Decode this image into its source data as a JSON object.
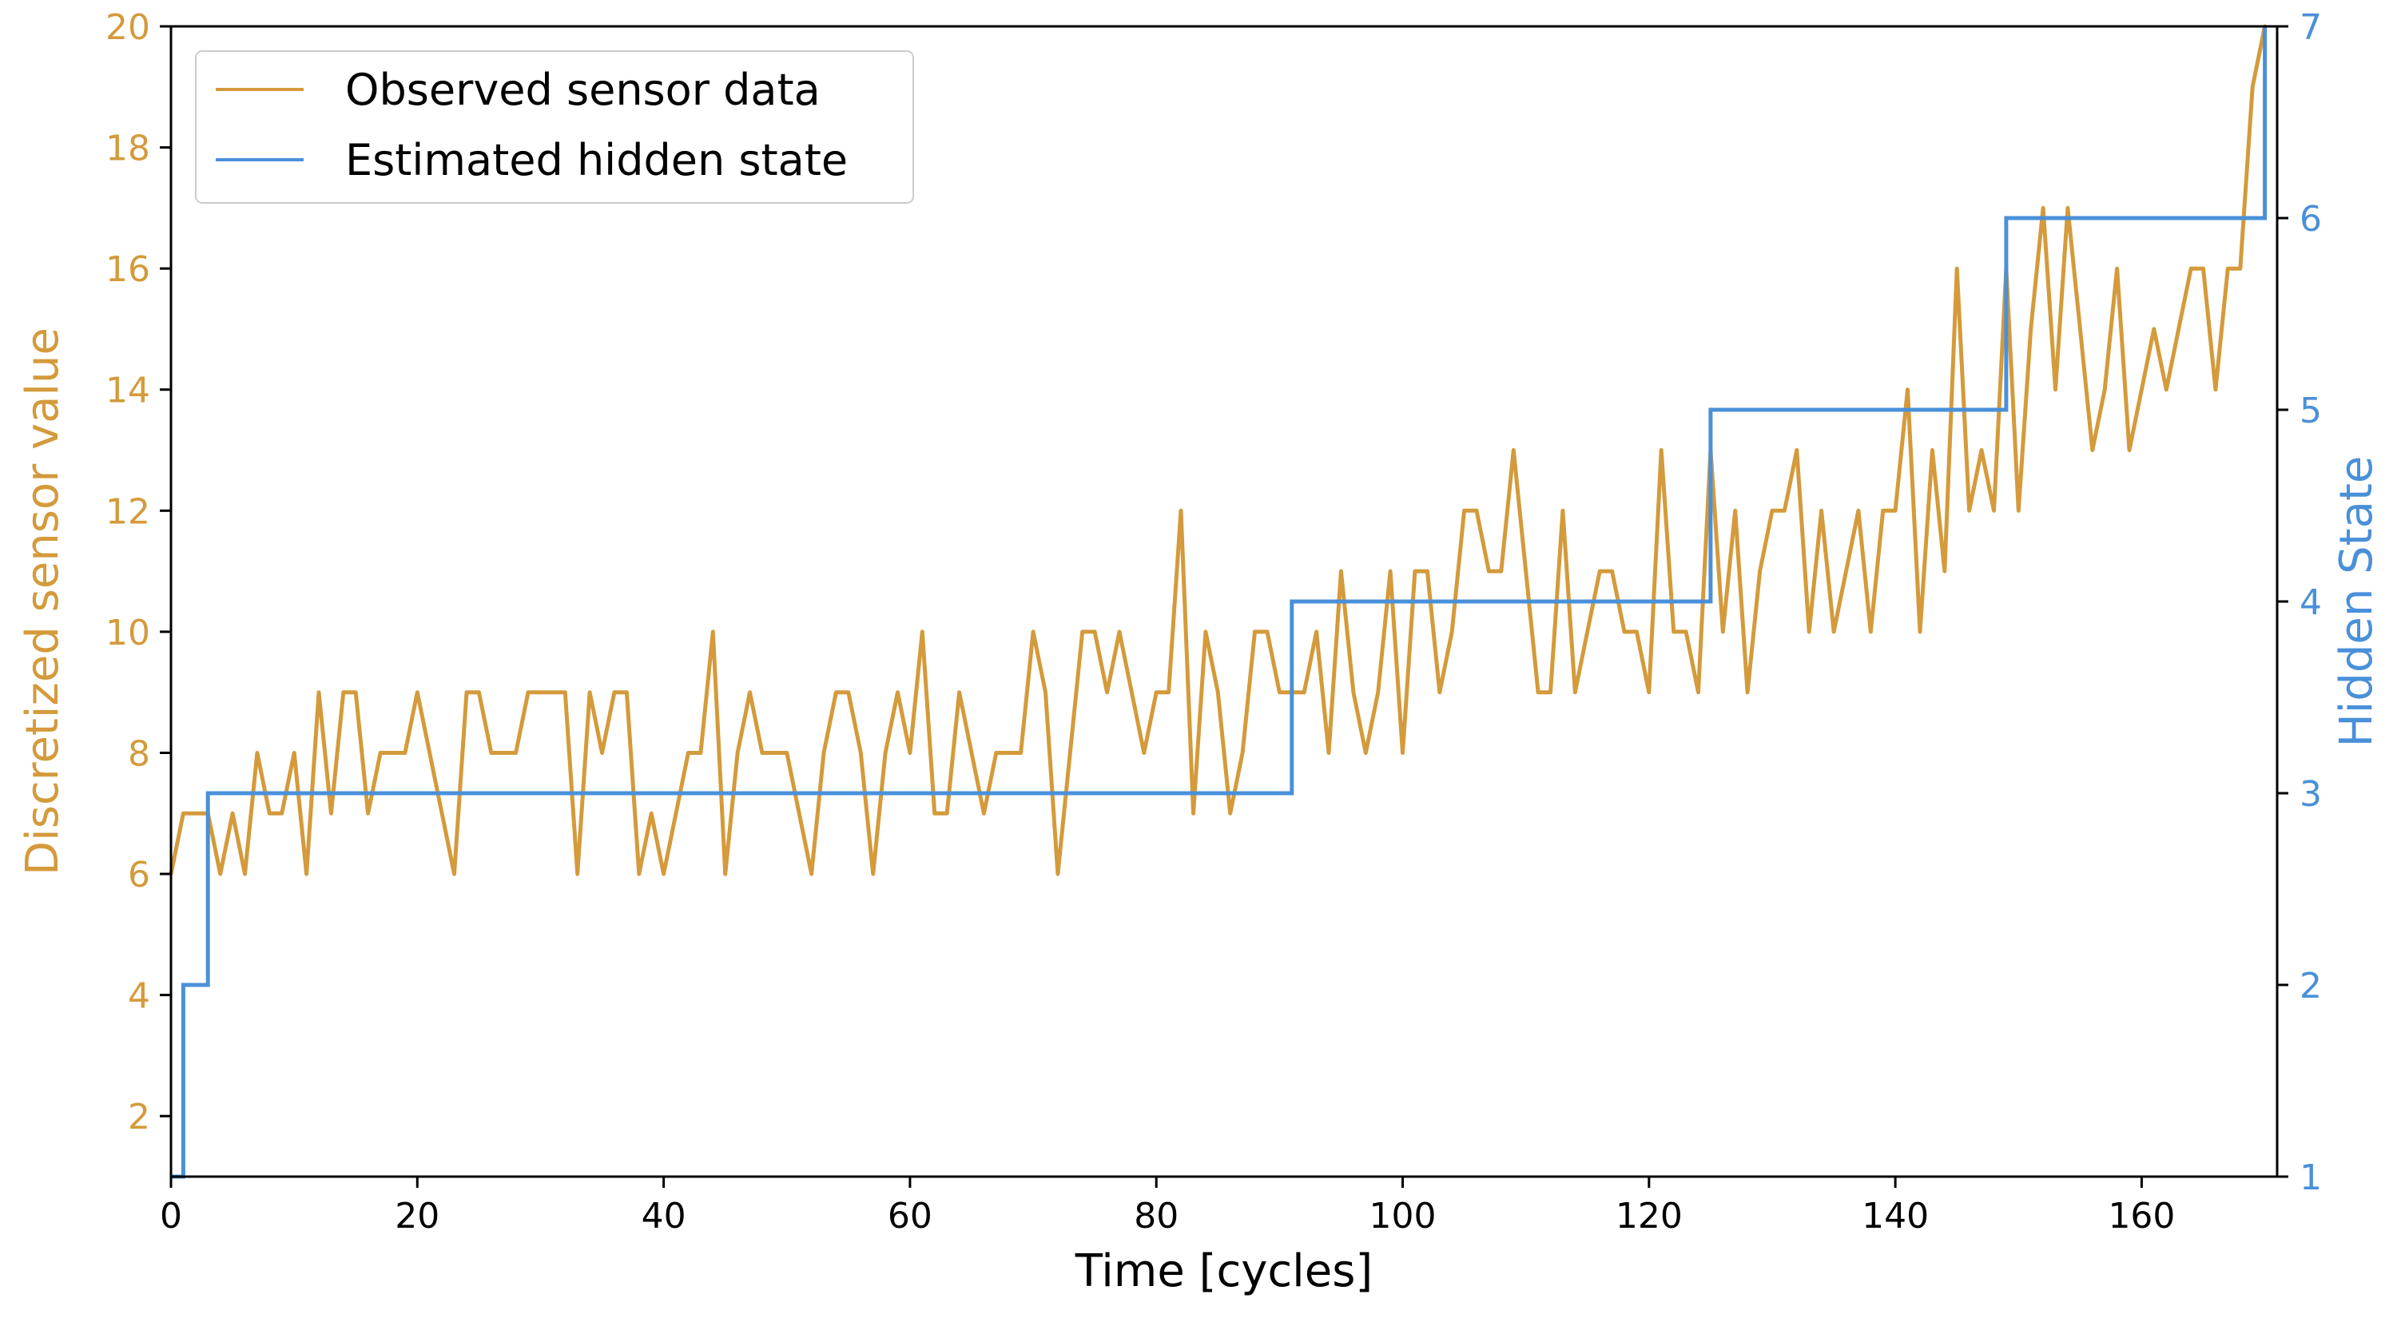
{
  "chart_data": {
    "type": "line",
    "xlabel": "Time [cycles]",
    "ylabel_left": "Discretized sensor value",
    "ylabel_right": "Hidden State",
    "xlim": [
      0,
      171
    ],
    "ylim_left": [
      1,
      20
    ],
    "ylim_right": [
      1,
      7
    ],
    "x_ticks": [
      0,
      20,
      40,
      60,
      80,
      100,
      120,
      140,
      160
    ],
    "y_ticks_left": [
      2,
      4,
      6,
      8,
      10,
      12,
      14,
      16,
      18,
      20
    ],
    "y_ticks_right": [
      1,
      2,
      3,
      4,
      5,
      6,
      7
    ],
    "grid": false,
    "legend": {
      "placement": "top-left"
    },
    "series": [
      {
        "name": "Observed sensor data",
        "axis": "left",
        "color": "#d49a3b",
        "style": "line",
        "x": [
          0,
          1,
          2,
          3,
          4,
          5,
          6,
          7,
          8,
          9,
          10,
          11,
          12,
          13,
          14,
          15,
          16,
          17,
          18,
          19,
          20,
          21,
          22,
          23,
          24,
          25,
          26,
          27,
          28,
          29,
          30,
          31,
          32,
          33,
          34,
          35,
          36,
          37,
          38,
          39,
          40,
          41,
          42,
          43,
          44,
          45,
          46,
          47,
          48,
          49,
          50,
          51,
          52,
          53,
          54,
          55,
          56,
          57,
          58,
          59,
          60,
          61,
          62,
          63,
          64,
          65,
          66,
          67,
          68,
          69,
          70,
          71,
          72,
          73,
          74,
          75,
          76,
          77,
          78,
          79,
          80,
          81,
          82,
          83,
          84,
          85,
          86,
          87,
          88,
          89,
          90,
          91,
          92,
          93,
          94,
          95,
          96,
          97,
          98,
          99,
          100,
          101,
          102,
          103,
          104,
          105,
          106,
          107,
          108,
          109,
          110,
          111,
          112,
          113,
          114,
          115,
          116,
          117,
          118,
          119,
          120,
          121,
          122,
          123,
          124,
          125,
          126,
          127,
          128,
          129,
          130,
          131,
          132,
          133,
          134,
          135,
          136,
          137,
          138,
          139,
          140,
          141,
          142,
          143,
          144,
          145,
          146,
          147,
          148,
          149,
          150,
          151,
          152,
          153,
          154,
          155,
          156,
          157,
          158,
          159,
          160,
          161,
          162,
          163,
          164,
          165,
          166,
          167,
          168,
          169,
          170
        ],
        "values": [
          6,
          7,
          7,
          7,
          6,
          7,
          6,
          8,
          7,
          7,
          8,
          6,
          9,
          7,
          9,
          9,
          7,
          8,
          8,
          8,
          9,
          8,
          7,
          6,
          9,
          9,
          8,
          8,
          8,
          9,
          9,
          9,
          9,
          6,
          9,
          8,
          9,
          9,
          6,
          7,
          6,
          7,
          8,
          8,
          10,
          6,
          8,
          9,
          8,
          8,
          8,
          7,
          6,
          8,
          9,
          9,
          8,
          6,
          8,
          9,
          8,
          10,
          7,
          7,
          9,
          8,
          7,
          8,
          8,
          8,
          10,
          9,
          6,
          8,
          10,
          10,
          9,
          10,
          9,
          8,
          9,
          9,
          12,
          7,
          10,
          9,
          7,
          8,
          10,
          10,
          9,
          9,
          9,
          10,
          8,
          11,
          9,
          8,
          9,
          11,
          8,
          11,
          11,
          9,
          10,
          12,
          12,
          11,
          11,
          13,
          11,
          9,
          9,
          12,
          9,
          10,
          11,
          11,
          10,
          10,
          9,
          13,
          10,
          10,
          9,
          13,
          10,
          12,
          9,
          11,
          12,
          12,
          13,
          10,
          12,
          10,
          11,
          12,
          10,
          12,
          12,
          14,
          10,
          13,
          11,
          16,
          12,
          13,
          12,
          16,
          12,
          15,
          17,
          14,
          17,
          15,
          13,
          14,
          16,
          13,
          14,
          15,
          14,
          15,
          16,
          16,
          14,
          16,
          16,
          19,
          20
        ]
      },
      {
        "name": "Estimated hidden state",
        "axis": "right",
        "color": "#4a90d9",
        "style": "step-post",
        "changes": [
          {
            "x": 0,
            "value": 1
          },
          {
            "x": 1,
            "value": 2
          },
          {
            "x": 3,
            "value": 3
          },
          {
            "x": 91,
            "value": 4
          },
          {
            "x": 125,
            "value": 5
          },
          {
            "x": 149,
            "value": 6
          },
          {
            "x": 170,
            "value": 7
          }
        ],
        "x_end": 170
      }
    ]
  }
}
